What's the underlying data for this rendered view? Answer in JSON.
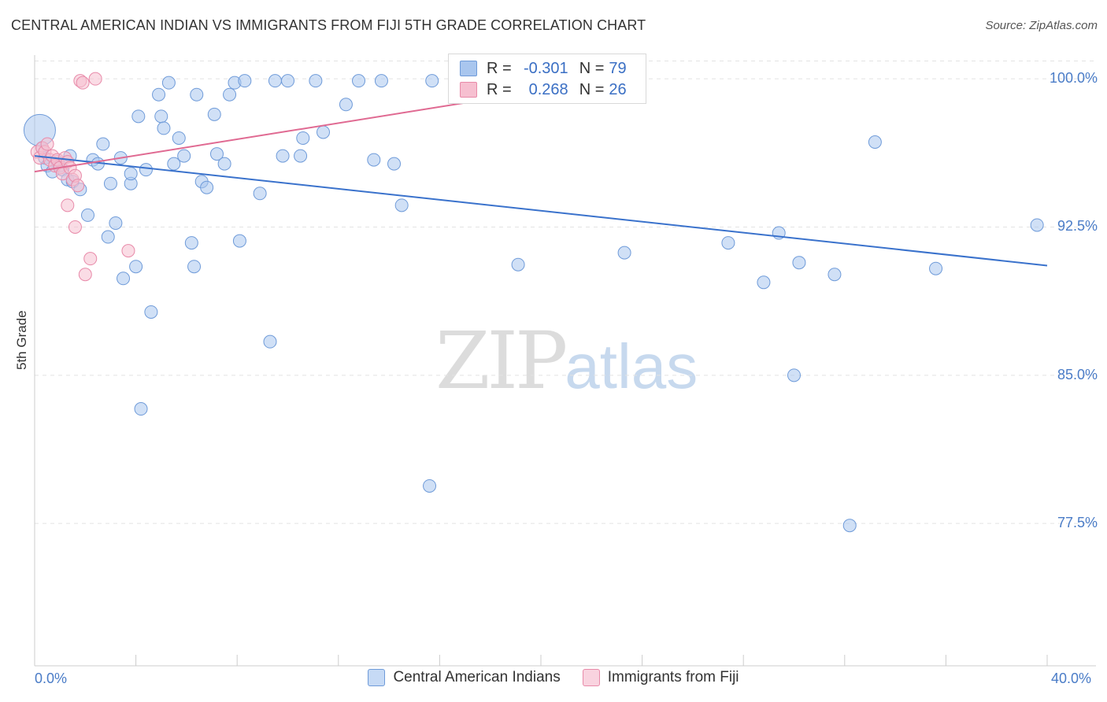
{
  "title": "CENTRAL AMERICAN INDIAN VS IMMIGRANTS FROM FIJI 5TH GRADE CORRELATION CHART",
  "source": "Source: ZipAtlas.com",
  "watermark": {
    "zip": "ZIP",
    "atlas": "atlas"
  },
  "stats": [
    {
      "r_label": "R =",
      "r_value": "-0.301",
      "n_label": "N =",
      "n_value": "79",
      "color": "#7ba7e6"
    },
    {
      "r_label": "R =",
      "r_value": "0.268",
      "n_label": "N =",
      "n_value": "26",
      "color": "#f2a3bd"
    }
  ],
  "colors": {
    "blue_fill": "#a9c6ee",
    "blue_stroke": "#6f9bd9",
    "blue_line": "#3a72cc",
    "pink_fill": "#f6bfd0",
    "pink_stroke": "#e88aa9",
    "pink_line": "#e06a92",
    "tick_text": "#4a7cc7",
    "grid": "#e3e3e3"
  },
  "chart_data": {
    "type": "scatter",
    "title": "CENTRAL AMERICAN INDIAN VS IMMIGRANTS FROM FIJI 5TH GRADE CORRELATION CHART",
    "xlabel": "",
    "ylabel": "5th Grade",
    "xlim": [
      0,
      40
    ],
    "ylim": [
      70.3,
      101.2
    ],
    "x_tick_labels": [
      "0.0%",
      "40.0%"
    ],
    "y_ticks": [
      77.5,
      85.0,
      92.5,
      100.0
    ],
    "y_tick_labels": [
      "77.5%",
      "85.0%",
      "92.5%",
      "100.0%"
    ],
    "grid": true,
    "legend_position": "bottom",
    "series": [
      {
        "name": "Central American Indians",
        "color": "#a9c6ee",
        "trend": {
          "x": [
            0,
            40
          ],
          "y": [
            96.1,
            90.55
          ]
        },
        "points": [
          {
            "x": 0.2,
            "y": 97.4,
            "big": true
          },
          {
            "x": 0.3,
            "y": 96.5
          },
          {
            "x": 0.4,
            "y": 96.0
          },
          {
            "x": 0.5,
            "y": 95.6
          },
          {
            "x": 0.7,
            "y": 95.3
          },
          {
            "x": 0.9,
            "y": 95.8
          },
          {
            "x": 1.0,
            "y": 95.6
          },
          {
            "x": 1.1,
            "y": 95.4
          },
          {
            "x": 1.3,
            "y": 94.9
          },
          {
            "x": 1.4,
            "y": 96.1
          },
          {
            "x": 1.5,
            "y": 94.8
          },
          {
            "x": 1.8,
            "y": 94.4
          },
          {
            "x": 2.1,
            "y": 93.1
          },
          {
            "x": 2.3,
            "y": 95.9
          },
          {
            "x": 2.5,
            "y": 95.7
          },
          {
            "x": 2.7,
            "y": 96.7
          },
          {
            "x": 2.9,
            "y": 92.0
          },
          {
            "x": 3.0,
            "y": 94.7
          },
          {
            "x": 3.2,
            "y": 92.7
          },
          {
            "x": 3.4,
            "y": 96.0
          },
          {
            "x": 3.5,
            "y": 89.9
          },
          {
            "x": 3.8,
            "y": 94.7
          },
          {
            "x": 3.8,
            "y": 95.2
          },
          {
            "x": 4.0,
            "y": 90.5
          },
          {
            "x": 4.1,
            "y": 98.1
          },
          {
            "x": 4.2,
            "y": 83.3
          },
          {
            "x": 4.4,
            "y": 95.4
          },
          {
            "x": 4.6,
            "y": 88.2
          },
          {
            "x": 4.9,
            "y": 99.2
          },
          {
            "x": 5.0,
            "y": 98.1
          },
          {
            "x": 5.1,
            "y": 97.5
          },
          {
            "x": 5.3,
            "y": 99.8
          },
          {
            "x": 5.5,
            "y": 95.7
          },
          {
            "x": 5.7,
            "y": 97.0
          },
          {
            "x": 5.9,
            "y": 96.1
          },
          {
            "x": 6.2,
            "y": 91.7
          },
          {
            "x": 6.3,
            "y": 90.5
          },
          {
            "x": 6.4,
            "y": 99.2
          },
          {
            "x": 6.6,
            "y": 94.8
          },
          {
            "x": 6.8,
            "y": 94.5
          },
          {
            "x": 7.1,
            "y": 98.2
          },
          {
            "x": 7.2,
            "y": 96.2
          },
          {
            "x": 7.5,
            "y": 95.7
          },
          {
            "x": 7.7,
            "y": 99.2
          },
          {
            "x": 7.9,
            "y": 99.8
          },
          {
            "x": 8.1,
            "y": 91.8
          },
          {
            "x": 8.3,
            "y": 99.9
          },
          {
            "x": 8.9,
            "y": 94.2
          },
          {
            "x": 9.3,
            "y": 86.7
          },
          {
            "x": 9.5,
            "y": 99.9
          },
          {
            "x": 9.8,
            "y": 96.1
          },
          {
            "x": 10.0,
            "y": 99.9
          },
          {
            "x": 10.5,
            "y": 96.1
          },
          {
            "x": 10.6,
            "y": 97.0
          },
          {
            "x": 11.1,
            "y": 99.9
          },
          {
            "x": 11.4,
            "y": 97.3
          },
          {
            "x": 12.3,
            "y": 98.7
          },
          {
            "x": 12.8,
            "y": 99.9
          },
          {
            "x": 13.4,
            "y": 95.9
          },
          {
            "x": 13.7,
            "y": 99.9
          },
          {
            "x": 14.5,
            "y": 93.6
          },
          {
            "x": 15.6,
            "y": 79.4
          },
          {
            "x": 15.7,
            "y": 99.9
          },
          {
            "x": 17.5,
            "y": 99.9
          },
          {
            "x": 18.0,
            "y": 99.9
          },
          {
            "x": 19.1,
            "y": 90.6
          },
          {
            "x": 22.2,
            "y": 99.9
          },
          {
            "x": 23.3,
            "y": 91.2
          },
          {
            "x": 27.4,
            "y": 91.7
          },
          {
            "x": 28.8,
            "y": 89.7
          },
          {
            "x": 29.4,
            "y": 92.2
          },
          {
            "x": 30.0,
            "y": 85.0
          },
          {
            "x": 30.2,
            "y": 90.7
          },
          {
            "x": 31.6,
            "y": 90.1
          },
          {
            "x": 32.2,
            "y": 77.4
          },
          {
            "x": 33.2,
            "y": 96.8
          },
          {
            "x": 35.6,
            "y": 90.4
          },
          {
            "x": 39.6,
            "y": 92.6
          },
          {
            "x": 14.2,
            "y": 95.7
          }
        ]
      },
      {
        "name": "Immigrants from Fiji",
        "color": "#f6bfd0",
        "trend": {
          "x": [
            0,
            20
          ],
          "y": [
            95.3,
            99.4
          ]
        },
        "points": [
          {
            "x": 0.1,
            "y": 96.3
          },
          {
            "x": 0.2,
            "y": 96.0
          },
          {
            "x": 0.3,
            "y": 96.5
          },
          {
            "x": 0.4,
            "y": 96.3
          },
          {
            "x": 0.5,
            "y": 96.7
          },
          {
            "x": 0.6,
            "y": 95.9
          },
          {
            "x": 0.7,
            "y": 96.1
          },
          {
            "x": 0.8,
            "y": 95.6
          },
          {
            "x": 0.9,
            "y": 95.9
          },
          {
            "x": 1.0,
            "y": 95.5
          },
          {
            "x": 1.1,
            "y": 95.2
          },
          {
            "x": 1.2,
            "y": 96.0
          },
          {
            "x": 1.3,
            "y": 95.8
          },
          {
            "x": 1.4,
            "y": 95.5
          },
          {
            "x": 1.5,
            "y": 94.9
          },
          {
            "x": 1.6,
            "y": 95.1
          },
          {
            "x": 1.7,
            "y": 94.6
          },
          {
            "x": 1.3,
            "y": 93.6
          },
          {
            "x": 1.6,
            "y": 92.5
          },
          {
            "x": 2.2,
            "y": 90.9
          },
          {
            "x": 2.0,
            "y": 90.1
          },
          {
            "x": 3.7,
            "y": 91.3
          },
          {
            "x": 1.8,
            "y": 99.9
          },
          {
            "x": 1.9,
            "y": 99.8
          },
          {
            "x": 2.4,
            "y": 100.0
          },
          {
            "x": 17.8,
            "y": 100.0
          }
        ]
      }
    ]
  }
}
